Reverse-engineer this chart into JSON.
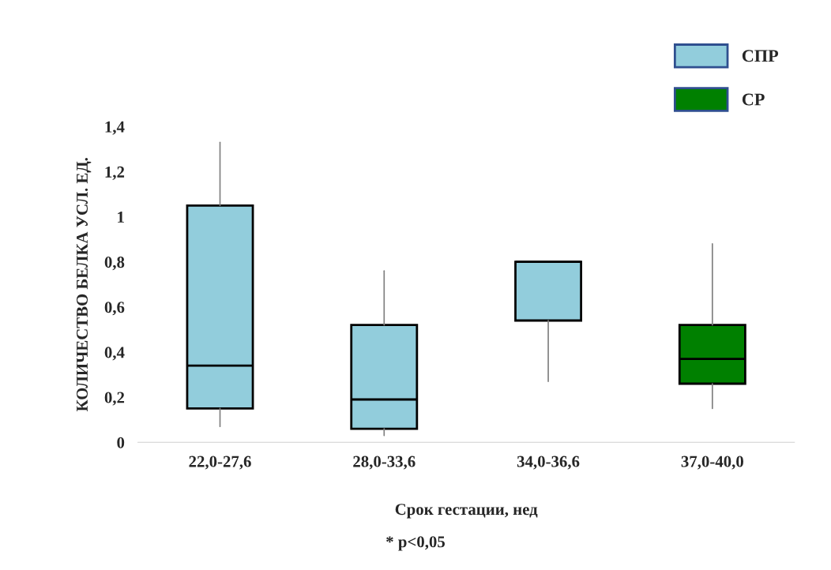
{
  "chart_data": {
    "type": "box",
    "categories": [
      "22,0-27,6",
      "28,0-33,6",
      "34,0-36,6",
      "37,0-40,0"
    ],
    "series": [
      {
        "name": "СПР",
        "color": "#92cddc",
        "boxes": [
          {
            "low": 0.07,
            "q1": 0.15,
            "median": 0.34,
            "q3": 1.05,
            "high": 1.33
          },
          {
            "low": 0.03,
            "q1": 0.06,
            "median": 0.19,
            "q3": 0.52,
            "high": 0.76
          },
          {
            "low": 0.27,
            "q1": 0.54,
            "median": 0.8,
            "q3": 0.8,
            "high": 0.8
          },
          null
        ]
      },
      {
        "name": "СР",
        "color": "#008000",
        "boxes": [
          null,
          null,
          null,
          {
            "low": 0.15,
            "q1": 0.26,
            "median": 0.37,
            "q3": 0.52,
            "high": 0.88
          }
        ]
      }
    ],
    "xlabel": "Срок гестации, нед",
    "ylabel": "КОЛИЧЕСТВО БЕЛКА УСЛ. ЕД.",
    "ylim": [
      0,
      1.4
    ],
    "yticks": [
      0,
      {
        "value": 0.2,
        "label": "0,2"
      },
      {
        "value": 0.4,
        "label": "0,4"
      },
      {
        "value": 0.6,
        "label": "0,6"
      },
      {
        "value": 0.8,
        "label": "0,8"
      },
      1,
      {
        "value": 1.2,
        "label": "1,2"
      },
      {
        "value": 1.4,
        "label": "1,4"
      }
    ],
    "grid": false,
    "legend": "top right",
    "annotations": [
      "* p<0,05"
    ]
  }
}
